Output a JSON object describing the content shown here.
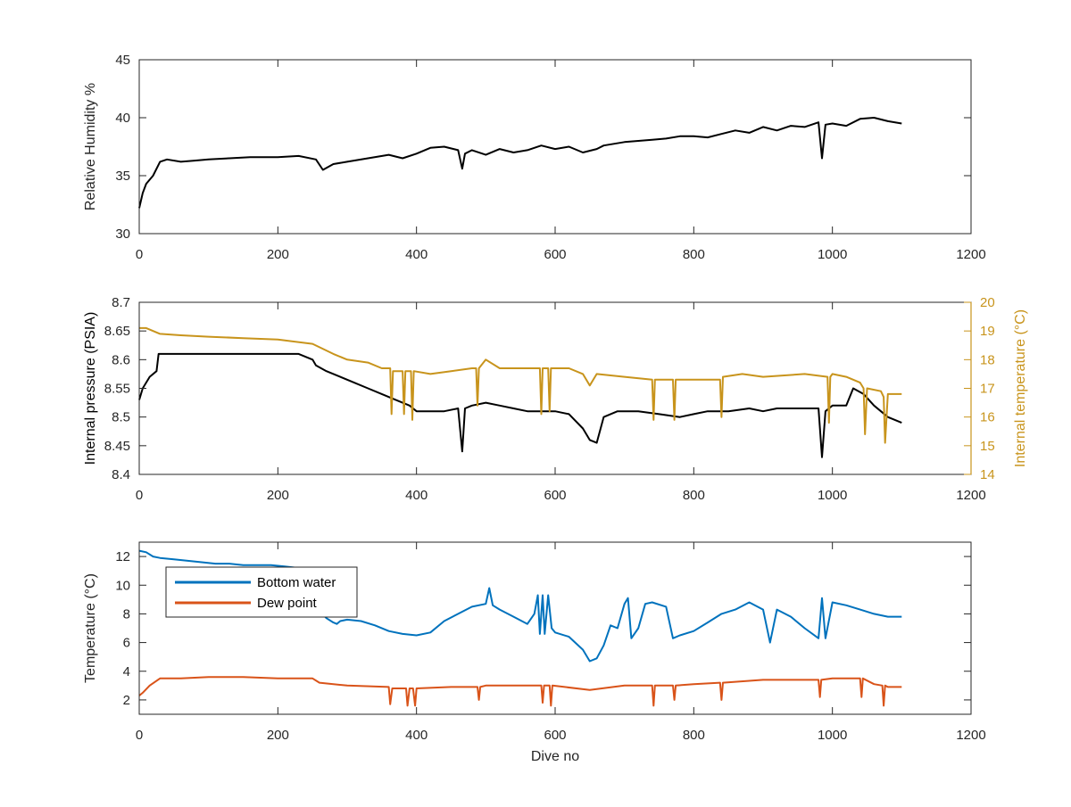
{
  "colors": {
    "black": "#000000",
    "axis": "#262626",
    "internal_temperature": "#c8941c",
    "bottom_water": "#0072bd",
    "dew_point": "#d95319"
  },
  "chart_data": [
    {
      "type": "line",
      "ylabel": "Relative Humidity %",
      "xlim": [
        0,
        1200
      ],
      "ylim": [
        30,
        45
      ],
      "xticks": [
        "0",
        "200",
        "400",
        "600",
        "800",
        "1000",
        "1200"
      ],
      "yticks": [
        "30",
        "35",
        "40",
        "45"
      ],
      "series": [
        {
          "color": "black",
          "x": [
            0,
            5,
            10,
            20,
            30,
            40,
            60,
            80,
            100,
            130,
            160,
            200,
            230,
            255,
            265,
            280,
            300,
            330,
            360,
            380,
            400,
            420,
            440,
            460,
            466,
            470,
            480,
            500,
            520,
            540,
            560,
            580,
            600,
            620,
            640,
            660,
            670,
            700,
            720,
            740,
            760,
            780,
            800,
            820,
            840,
            860,
            880,
            900,
            920,
            940,
            960,
            980,
            985,
            990,
            1000,
            1020,
            1040,
            1060,
            1080,
            1100
          ],
          "y": [
            32.2,
            33.5,
            34.3,
            35.0,
            36.2,
            36.4,
            36.2,
            36.3,
            36.4,
            36.5,
            36.6,
            36.6,
            36.7,
            36.4,
            35.5,
            36.0,
            36.2,
            36.5,
            36.8,
            36.5,
            36.9,
            37.4,
            37.5,
            37.2,
            35.6,
            36.9,
            37.2,
            36.8,
            37.3,
            37.0,
            37.2,
            37.6,
            37.3,
            37.5,
            37.0,
            37.3,
            37.6,
            37.9,
            38.0,
            38.1,
            38.2,
            38.4,
            38.4,
            38.3,
            38.6,
            38.9,
            38.7,
            39.2,
            38.9,
            39.3,
            39.2,
            39.6,
            36.5,
            39.4,
            39.5,
            39.3,
            39.9,
            40.0,
            39.7,
            39.5
          ]
        }
      ]
    },
    {
      "type": "line",
      "ylabel": "Internal pressure (PSIA)",
      "y2label": "Internal temperature (°C)",
      "xlim": [
        0,
        1200
      ],
      "ylim": [
        8.4,
        8.7
      ],
      "y2lim": [
        14,
        20
      ],
      "xticks": [
        "0",
        "200",
        "400",
        "600",
        "800",
        "1000",
        "1200"
      ],
      "yticks": [
        "8.4",
        "8.45",
        "8.5",
        "8.55",
        "8.6",
        "8.65",
        "8.7"
      ],
      "y2ticks": [
        "14",
        "15",
        "16",
        "17",
        "18",
        "19",
        "20"
      ],
      "series": [
        {
          "axis": "left",
          "color": "black",
          "x": [
            0,
            5,
            15,
            25,
            28,
            40,
            60,
            80,
            100,
            130,
            160,
            200,
            230,
            250,
            255,
            270,
            290,
            310,
            330,
            350,
            370,
            390,
            400,
            420,
            440,
            460,
            466,
            470,
            480,
            500,
            520,
            540,
            560,
            580,
            600,
            620,
            640,
            650,
            660,
            670,
            690,
            720,
            750,
            780,
            800,
            820,
            850,
            880,
            900,
            920,
            940,
            980,
            985,
            990,
            1000,
            1020,
            1030,
            1045,
            1060,
            1080,
            1100
          ],
          "y": [
            8.53,
            8.55,
            8.57,
            8.58,
            8.61,
            8.61,
            8.61,
            8.61,
            8.61,
            8.61,
            8.61,
            8.61,
            8.61,
            8.6,
            8.59,
            8.58,
            8.57,
            8.56,
            8.55,
            8.54,
            8.53,
            8.52,
            8.51,
            8.51,
            8.51,
            8.515,
            8.44,
            8.515,
            8.52,
            8.525,
            8.52,
            8.515,
            8.51,
            8.51,
            8.51,
            8.505,
            8.48,
            8.46,
            8.455,
            8.5,
            8.51,
            8.51,
            8.505,
            8.5,
            8.505,
            8.51,
            8.51,
            8.515,
            8.51,
            8.515,
            8.515,
            8.515,
            8.43,
            8.51,
            8.52,
            8.52,
            8.55,
            8.54,
            8.52,
            8.5,
            8.49
          ]
        },
        {
          "axis": "right",
          "color": "internal_temperature",
          "x": [
            0,
            10,
            30,
            60,
            100,
            150,
            200,
            250,
            280,
            300,
            330,
            350,
            362,
            364,
            366,
            380,
            382,
            384,
            392,
            394,
            396,
            420,
            450,
            480,
            486,
            488,
            490,
            500,
            520,
            560,
            578,
            580,
            582,
            590,
            592,
            594,
            620,
            640,
            650,
            660,
            700,
            740,
            742,
            744,
            770,
            772,
            774,
            800,
            838,
            840,
            842,
            870,
            900,
            960,
            993,
            995,
            997,
            1000,
            1020,
            1040,
            1045,
            1047,
            1050,
            1070,
            1074,
            1076,
            1080,
            1100
          ],
          "y": [
            19.1,
            19.1,
            18.9,
            18.85,
            18.8,
            18.75,
            18.7,
            18.55,
            18.2,
            18.0,
            17.9,
            17.7,
            17.7,
            16.1,
            17.6,
            17.6,
            16.1,
            17.6,
            17.6,
            15.9,
            17.6,
            17.5,
            17.6,
            17.7,
            17.7,
            16.4,
            17.7,
            18.0,
            17.7,
            17.7,
            17.7,
            16.1,
            17.7,
            17.7,
            16.2,
            17.7,
            17.7,
            17.5,
            17.1,
            17.5,
            17.4,
            17.3,
            15.9,
            17.3,
            17.3,
            15.9,
            17.3,
            17.3,
            17.3,
            16.0,
            17.4,
            17.5,
            17.4,
            17.5,
            17.4,
            15.8,
            17.4,
            17.5,
            17.4,
            17.2,
            17.0,
            15.4,
            17.0,
            16.9,
            16.7,
            15.1,
            16.8,
            16.8
          ]
        }
      ]
    },
    {
      "type": "line",
      "xlabel": "Dive no",
      "ylabel": "Temperature (°C)",
      "xlim": [
        0,
        1200
      ],
      "ylim": [
        1,
        13
      ],
      "xticks": [
        "0",
        "200",
        "400",
        "600",
        "800",
        "1000",
        "1200"
      ],
      "yticks": [
        "2",
        "4",
        "6",
        "8",
        "10",
        "12"
      ],
      "legend": {
        "position": "top-left"
      },
      "series": [
        {
          "name": "Bottom water",
          "color": "bottom_water",
          "x": [
            0,
            10,
            20,
            30,
            50,
            70,
            90,
            110,
            130,
            150,
            170,
            190,
            210,
            230,
            250,
            262,
            264,
            270,
            280,
            285,
            290,
            300,
            320,
            340,
            360,
            380,
            400,
            420,
            440,
            460,
            480,
            500,
            505,
            510,
            520,
            540,
            560,
            570,
            575,
            578,
            582,
            585,
            590,
            595,
            600,
            620,
            640,
            650,
            660,
            670,
            680,
            690,
            700,
            705,
            710,
            720,
            730,
            740,
            760,
            770,
            780,
            800,
            820,
            840,
            860,
            880,
            900,
            910,
            920,
            940,
            960,
            980,
            985,
            990,
            1000,
            1020,
            1040,
            1060,
            1080,
            1100
          ],
          "y": [
            12.4,
            12.3,
            12.0,
            11.9,
            11.8,
            11.7,
            11.6,
            11.5,
            11.5,
            11.4,
            11.4,
            11.4,
            11.3,
            11.2,
            11.0,
            10.7,
            8.0,
            7.7,
            7.4,
            7.3,
            7.5,
            7.6,
            7.5,
            7.2,
            6.8,
            6.6,
            6.5,
            6.7,
            7.5,
            8.0,
            8.5,
            8.7,
            9.8,
            8.6,
            8.3,
            7.8,
            7.3,
            8.0,
            9.3,
            6.6,
            9.3,
            6.6,
            9.3,
            7.0,
            6.7,
            6.4,
            5.5,
            4.7,
            4.9,
            5.8,
            7.2,
            7.0,
            8.7,
            9.1,
            6.3,
            7.0,
            8.7,
            8.8,
            8.5,
            6.3,
            6.5,
            6.8,
            7.4,
            8.0,
            8.3,
            8.8,
            8.3,
            6.0,
            8.3,
            7.8,
            7.0,
            6.3,
            9.1,
            6.3,
            8.8,
            8.6,
            8.3,
            8.0,
            7.8,
            7.8
          ]
        },
        {
          "name": "Dew point",
          "color": "dew_point",
          "x": [
            0,
            5,
            15,
            30,
            60,
            100,
            150,
            200,
            250,
            260,
            300,
            360,
            362,
            365,
            385,
            387,
            390,
            395,
            398,
            400,
            450,
            488,
            490,
            492,
            500,
            550,
            580,
            582,
            584,
            592,
            594,
            596,
            650,
            700,
            740,
            742,
            744,
            770,
            772,
            774,
            800,
            838,
            840,
            842,
            900,
            980,
            982,
            984,
            1000,
            1040,
            1042,
            1044,
            1060,
            1072,
            1074,
            1076,
            1080,
            1100
          ],
          "y": [
            2.3,
            2.5,
            3.0,
            3.5,
            3.5,
            3.6,
            3.6,
            3.5,
            3.5,
            3.2,
            3.0,
            2.9,
            1.7,
            2.8,
            2.8,
            1.6,
            2.8,
            2.8,
            1.6,
            2.8,
            2.9,
            2.9,
            2.0,
            2.9,
            3.0,
            3.0,
            3.0,
            1.8,
            3.0,
            3.0,
            1.6,
            3.0,
            2.7,
            3.0,
            3.0,
            1.6,
            3.0,
            3.0,
            2.0,
            3.0,
            3.1,
            3.2,
            2.0,
            3.2,
            3.4,
            3.4,
            2.2,
            3.4,
            3.5,
            3.5,
            2.2,
            3.5,
            3.1,
            3.0,
            1.6,
            3.0,
            2.9,
            2.9
          ]
        }
      ]
    }
  ]
}
